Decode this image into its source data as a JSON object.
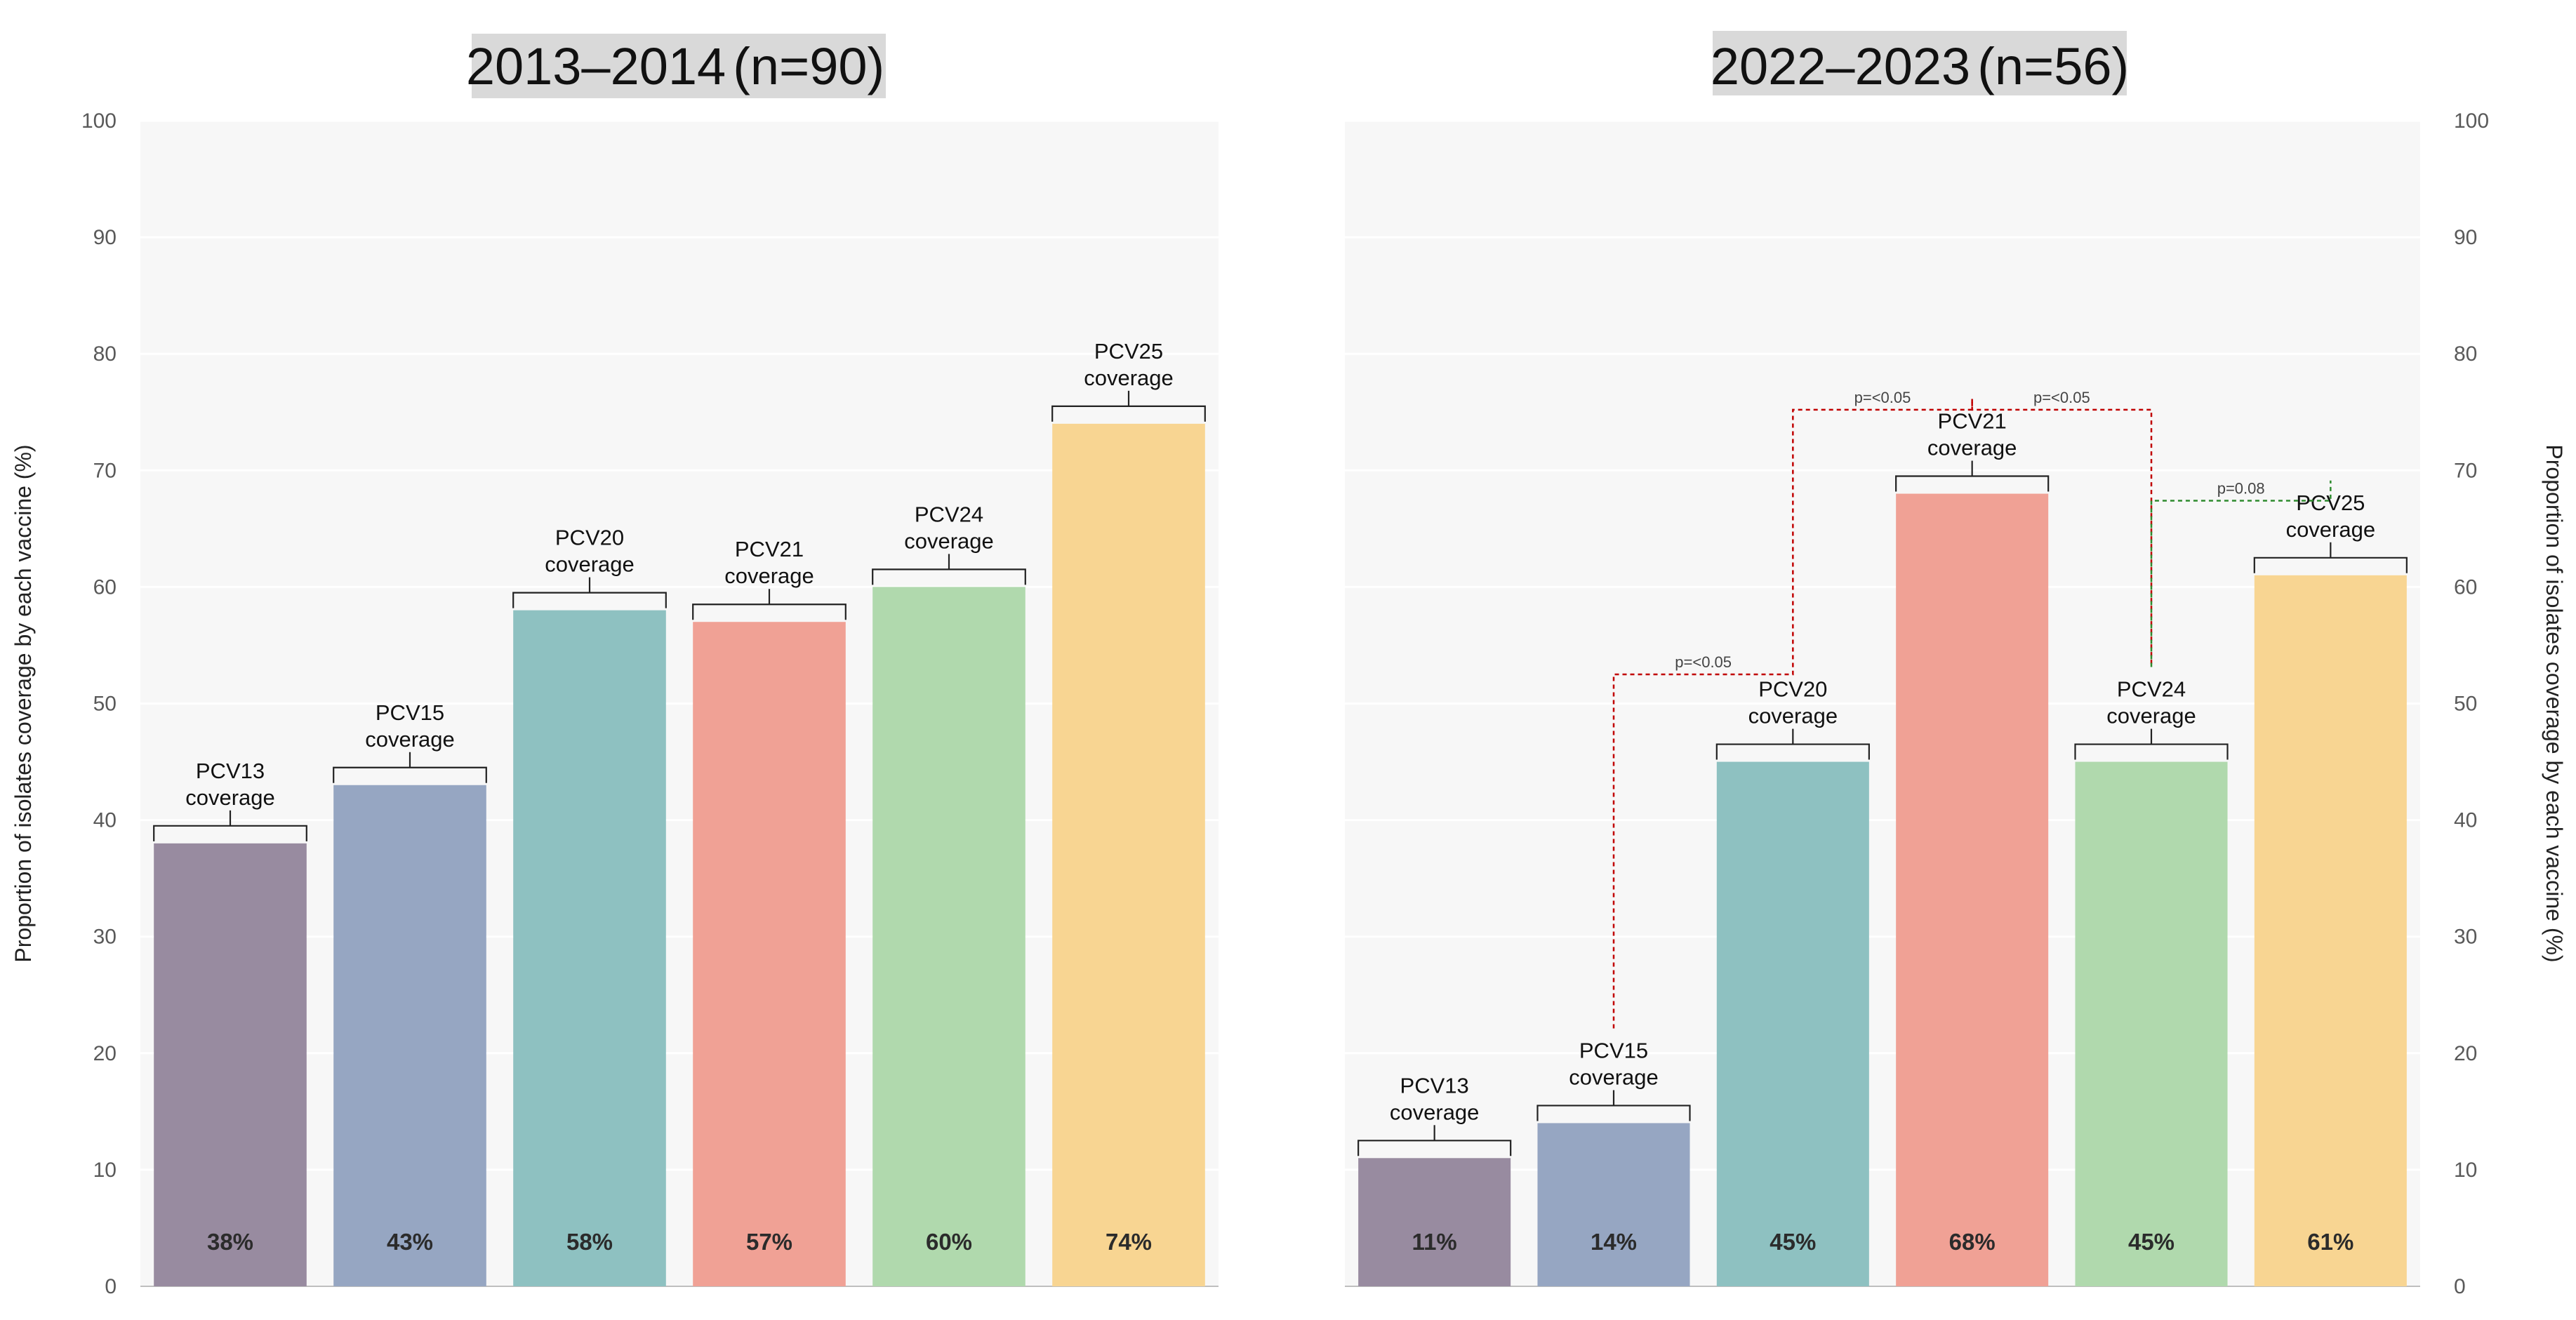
{
  "chart_data": [
    {
      "type": "bar",
      "title": "2013–2014 (n=90)",
      "title_main": "2013–2014",
      "title_n": "(n=90)",
      "ylabel": "Proportion of isolates coverage by each vaccine (%)",
      "ylim": [
        0,
        100
      ],
      "yticks": [
        0,
        10,
        20,
        30,
        40,
        50,
        60,
        70,
        80,
        90,
        100
      ],
      "categories": [
        "PCV13",
        "PCV15",
        "PCV20",
        "PCV21",
        "PCV24",
        "PCV25"
      ],
      "values": [
        38,
        43,
        58,
        57,
        60,
        74
      ],
      "data_labels": [
        "38%",
        "43%",
        "58%",
        "57%",
        "60%",
        "74%"
      ],
      "bar_labels": [
        [
          "PCV13",
          "coverage"
        ],
        [
          "PCV15",
          "coverage"
        ],
        [
          "PCV20",
          "coverage"
        ],
        [
          "PCV21",
          "coverage"
        ],
        [
          "PCV24",
          "coverage"
        ],
        [
          "PCV25",
          "coverage"
        ]
      ],
      "colors": [
        "#988ba0",
        "#96a6c2",
        "#8ec1c1",
        "#f0a195",
        "#b0d9ad",
        "#f8d592"
      ],
      "comparisons": []
    },
    {
      "type": "bar",
      "title": "2022–2023 (n=56)",
      "title_main": "2022–2023",
      "title_n": "(n=56)",
      "ylabel": "Proportion of isolates coverage by each vaccine (%)",
      "ylim": [
        0,
        100
      ],
      "yticks": [
        0,
        10,
        20,
        30,
        40,
        50,
        60,
        70,
        80,
        90,
        100
      ],
      "categories": [
        "PCV13",
        "PCV15",
        "PCV20",
        "PCV21",
        "PCV24",
        "PCV25"
      ],
      "values": [
        11,
        14,
        45,
        68,
        45,
        61
      ],
      "data_labels": [
        "11%",
        "14%",
        "45%",
        "68%",
        "45%",
        "61%"
      ],
      "bar_labels": [
        [
          "PCV13",
          "coverage"
        ],
        [
          "PCV15",
          "coverage"
        ],
        [
          "PCV20",
          "coverage"
        ],
        [
          "PCV21",
          "coverage"
        ],
        [
          "PCV24",
          "coverage"
        ],
        [
          "PCV25",
          "coverage"
        ]
      ],
      "colors": [
        "#988ba0",
        "#96a6c2",
        "#8ec1c1",
        "#f0a195",
        "#b0d9ad",
        "#f8d592"
      ],
      "comparisons": [
        {
          "from": "PCV15",
          "to": "PCV20",
          "label": "p=<0.05",
          "color": "#c00000",
          "level": 52.5
        },
        {
          "from": "PCV20",
          "to": "PCV21",
          "label": "p=<0.05",
          "color": "#c00000",
          "level": 75.2
        },
        {
          "from": "PCV21",
          "to": "PCV24",
          "label": "p=<0.05",
          "color": "#c00000",
          "level": 75.2
        },
        {
          "from": "PCV24",
          "to": "PCV25",
          "label": "p=0.08",
          "color": "#2e8b2e",
          "level": 67.4
        }
      ]
    }
  ]
}
